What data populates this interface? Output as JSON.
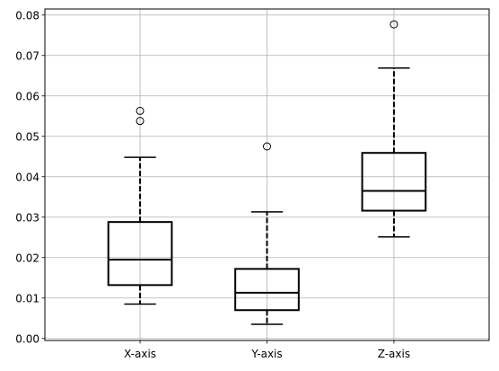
{
  "chart_data": {
    "type": "box",
    "title": "",
    "xlabel": "",
    "ylabel": "",
    "ylim": [
      -0.0005,
      0.0815
    ],
    "yticks": [
      0.0,
      0.01,
      0.02,
      0.03,
      0.04,
      0.05,
      0.06,
      0.07,
      0.08
    ],
    "ytick_labels": [
      "0.00",
      "0.01",
      "0.02",
      "0.03",
      "0.04",
      "0.05",
      "0.06",
      "0.07",
      "0.08"
    ],
    "grid": true,
    "categories": [
      "X-axis",
      "Y-axis",
      "Z-axis"
    ],
    "boxes": [
      {
        "name": "X-axis",
        "whisker_low": 0.0085,
        "q1": 0.0132,
        "median": 0.0195,
        "q3": 0.0288,
        "whisker_high": 0.0448,
        "outliers": [
          0.0538,
          0.0563
        ]
      },
      {
        "name": "Y-axis",
        "whisker_low": 0.0035,
        "q1": 0.007,
        "median": 0.0113,
        "q3": 0.0172,
        "whisker_high": 0.0313,
        "outliers": [
          0.0475
        ]
      },
      {
        "name": "Z-axis",
        "whisker_low": 0.0251,
        "q1": 0.0316,
        "median": 0.0365,
        "q3": 0.0459,
        "whisker_high": 0.0669,
        "outliers": [
          0.0777
        ]
      }
    ],
    "colors": {
      "box": "#000000",
      "grid": "#b0b0b0",
      "background": "#ffffff"
    }
  }
}
